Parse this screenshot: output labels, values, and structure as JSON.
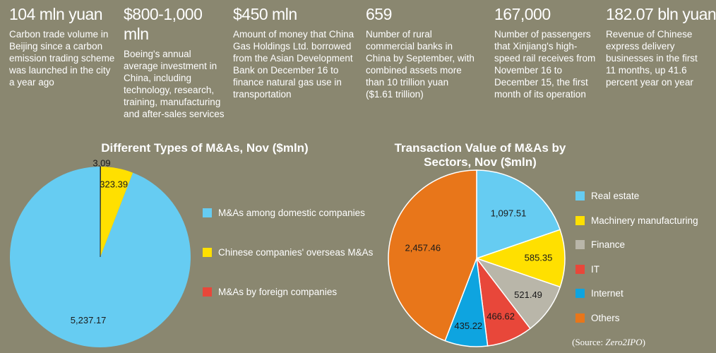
{
  "stats": [
    {
      "value": "104 mln yuan",
      "desc": "Carbon trade volume in Beijing since a carbon emission trading scheme was launched in the city a year ago"
    },
    {
      "value": "$800-1,000 mln",
      "desc": "Boeing's annual average investment in China, including technology, research, training, manufacturing and after-sales services"
    },
    {
      "value": "$450 mln",
      "desc": "Amount of money that China Gas Holdings Ltd. borrowed from the Asian Development Bank on December 16 to finance natural gas use in transportation"
    },
    {
      "value": "659",
      "desc": "Number of rural commercial banks in China by September, with combined assets more than 10 trillion yuan ($1.61 trillion)"
    },
    {
      "value": "167,000",
      "desc": "Number of passengers that Xinjiang's high-speed rail receives from November 16 to December 15, the first month of its operation"
    },
    {
      "value": "182.07 bln yuan",
      "desc": "Revenue of Chinese express delivery businesses in the first 11 months, up 41.6 percent year on year"
    }
  ],
  "chart_data": [
    {
      "type": "pie",
      "title": "Different Types of M&As, Nov ($mln)",
      "categories": [
        "M&As among domestic companies",
        "Chinese companies' overseas M&As",
        "M&As by foreign companies"
      ],
      "values": [
        5237.17,
        323.39,
        3.09
      ],
      "labels": [
        "5,237.17",
        "323.39",
        "3.09"
      ],
      "colors": [
        "#66ccf2",
        "#ffe000",
        "#e8473a"
      ],
      "legend_position": "right"
    },
    {
      "type": "pie",
      "title": "Transaction Value of M&As by Sectors, Nov ($mln)",
      "categories": [
        "Real estate",
        "Machinery manufacturing",
        "Finance",
        "IT",
        "Internet",
        "Others"
      ],
      "values": [
        1097.51,
        585.35,
        521.49,
        466.62,
        435.22,
        2457.46
      ],
      "labels": [
        "1,097.51",
        "585.35",
        "521.49",
        "466.62",
        "435.22",
        "2,457.46"
      ],
      "colors": [
        "#66ccf2",
        "#ffe000",
        "#b9b6a9",
        "#e8473a",
        "#0ea4e0",
        "#e8761a"
      ],
      "legend_position": "right"
    }
  ],
  "source": {
    "prefix": "(Source: ",
    "name": "Zero2IPO",
    "suffix": ")"
  }
}
